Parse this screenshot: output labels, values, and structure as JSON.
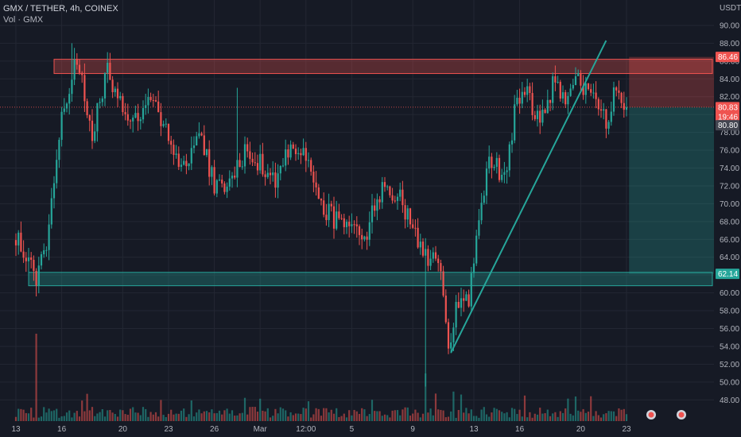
{
  "header": {
    "symbol_line": "GMX / TETHER, 4h, COINEX",
    "volume_line": "Vol · GMX"
  },
  "colors": {
    "background": "#161a25",
    "grid": "#232733",
    "up": "#26a69a",
    "down": "#ef5350",
    "trendline": "#26a69a"
  },
  "chart_data": {
    "type": "candlestick",
    "y_axis_label": "USDT",
    "ylim": [
      47,
      92
    ],
    "y_ticks": [
      48,
      50,
      52,
      54,
      56,
      58,
      60,
      62,
      64,
      66,
      68,
      70,
      72,
      74,
      76,
      78,
      80,
      82,
      84,
      86,
      88,
      90
    ],
    "x_ticks": [
      {
        "label": "13",
        "index": 0
      },
      {
        "label": "16",
        "index": 18
      },
      {
        "label": "20",
        "index": 42
      },
      {
        "label": "23",
        "index": 60
      },
      {
        "label": "26",
        "index": 78
      },
      {
        "label": "Mar",
        "index": 96
      },
      {
        "label": "12:00",
        "index": 114
      },
      {
        "label": "5",
        "index": 132
      },
      {
        "label": "9",
        "index": 156
      },
      {
        "label": "13",
        "index": 180
      },
      {
        "label": "16",
        "index": 198
      },
      {
        "label": "20",
        "index": 222
      },
      {
        "label": "23",
        "index": 240
      }
    ],
    "price_path": [
      [
        0,
        66.5
      ],
      [
        8,
        61.5
      ],
      [
        12,
        66
      ],
      [
        18,
        80
      ],
      [
        24,
        86
      ],
      [
        30,
        78
      ],
      [
        36,
        85
      ],
      [
        42,
        81
      ],
      [
        48,
        79
      ],
      [
        54,
        82
      ],
      [
        60,
        77
      ],
      [
        66,
        74
      ],
      [
        72,
        78
      ],
      [
        78,
        72
      ],
      [
        84,
        72
      ],
      [
        90,
        76
      ],
      [
        96,
        74.5
      ],
      [
        102,
        73
      ],
      [
        108,
        76.5
      ],
      [
        114,
        75
      ],
      [
        120,
        70
      ],
      [
        126,
        68
      ],
      [
        132,
        66.5
      ],
      [
        138,
        67
      ],
      [
        144,
        72
      ],
      [
        150,
        71
      ],
      [
        156,
        67.5
      ],
      [
        162,
        63
      ],
      [
        166,
        64
      ],
      [
        170,
        54
      ],
      [
        174,
        59.5
      ],
      [
        178,
        59.5
      ],
      [
        182,
        68
      ],
      [
        186,
        75
      ],
      [
        192,
        73
      ],
      [
        196,
        80
      ],
      [
        200,
        83
      ],
      [
        206,
        79
      ],
      [
        212,
        84
      ],
      [
        216,
        81
      ],
      [
        220,
        84
      ],
      [
        226,
        82
      ],
      [
        232,
        79
      ],
      [
        236,
        83.5
      ],
      [
        240,
        80.83
      ]
    ],
    "spikes": [
      {
        "index": 22,
        "high": 88
      },
      {
        "index": 87,
        "high": 83
      },
      {
        "index": 161,
        "low": 49.5
      }
    ],
    "zones": [
      {
        "name": "resistance",
        "low": 84.6,
        "high": 86.2,
        "color": "#ef5350"
      },
      {
        "name": "support",
        "low": 60.8,
        "high": 62.3,
        "color": "#26a69a"
      }
    ],
    "trendline": {
      "start": {
        "index": 171,
        "price": 53.3
      },
      "end": {
        "index": 232,
        "price": 88.3
      }
    },
    "position": {
      "start_index": 241,
      "entry": 80.83,
      "stop": 86.46,
      "target": 62.14
    },
    "current_price": 80.83,
    "price_labels": [
      {
        "value": "86.46",
        "price": 86.46,
        "color": "#ef5350"
      },
      {
        "value": "80.83",
        "price": 80.83,
        "color": "#ef5350"
      },
      {
        "value": "19:46",
        "price": 79.75,
        "color": "#ef5350"
      },
      {
        "value": "80.80",
        "price": 78.8,
        "color": "#434651"
      },
      {
        "value": "62.14",
        "price": 62.14,
        "color": "#26a69a"
      }
    ]
  }
}
